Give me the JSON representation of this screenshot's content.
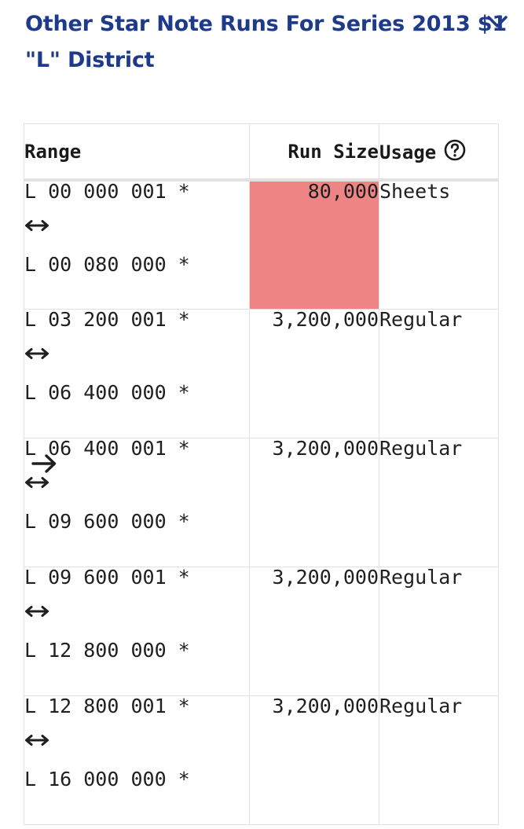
{
  "heading": {
    "title": "Other Star Note Runs For Series 2013 $1 \"L\" District"
  },
  "icons": {
    "collapse": "chevron-down-icon",
    "help": "question-circle-icon",
    "range_separator": "left-right-arrow-icon",
    "current_marker": "right-arrow-icon"
  },
  "table": {
    "headers": {
      "range": "Range",
      "run_size": "Run Size",
      "usage": "Usage"
    },
    "rows": [
      {
        "start": "L 00 000 001 *",
        "end": "L 00 080 000 *",
        "run_size": "80,000",
        "usage": "Sheets",
        "highlighted": true,
        "current": false,
        "highlight_color": "#ee8584"
      },
      {
        "start": "L 03 200 001 *",
        "end": "L 06 400 000 *",
        "run_size": "3,200,000",
        "usage": "Regular",
        "highlighted": false,
        "current": false
      },
      {
        "start": "L 06 400 001 *",
        "end": "L 09 600 000 *",
        "run_size": "3,200,000",
        "usage": "Regular",
        "highlighted": false,
        "current": true
      },
      {
        "start": "L 09 600 001 *",
        "end": "L 12 800 000 *",
        "run_size": "3,200,000",
        "usage": "Regular",
        "highlighted": false,
        "current": false
      },
      {
        "start": "L 12 800 001 *",
        "end": "L 16 000 000 *",
        "run_size": "3,200,000",
        "usage": "Regular",
        "highlighted": false,
        "current": false
      }
    ]
  },
  "colors": {
    "title": "#1e3a8a",
    "highlight": "#ee8584",
    "border": "#e2e2e2"
  }
}
